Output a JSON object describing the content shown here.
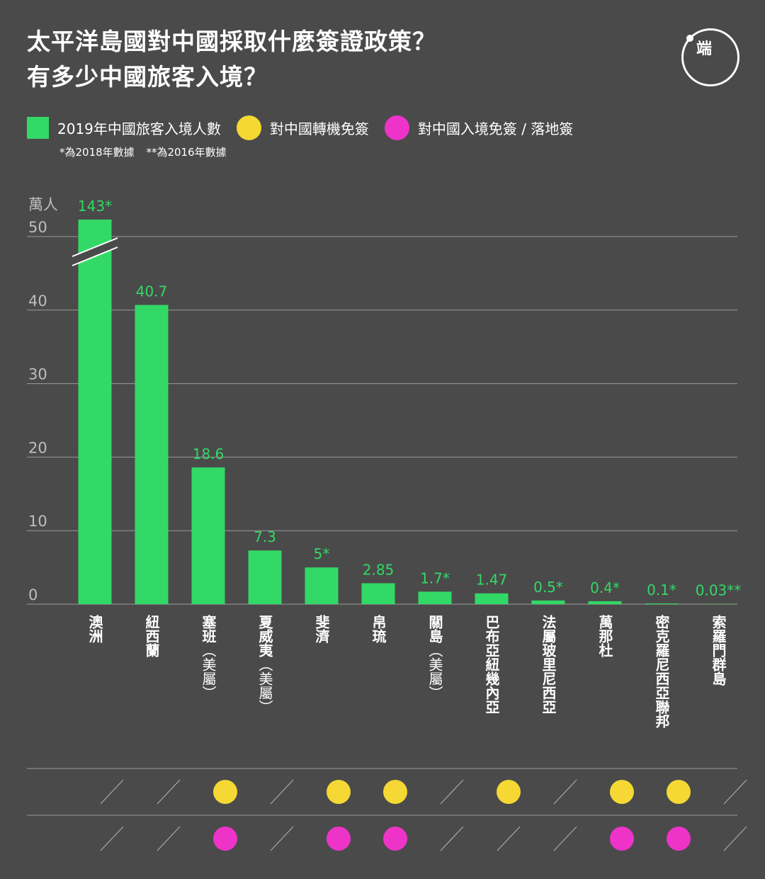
{
  "title": {
    "line1": "太平洋島國對中國採取什麼簽證政策？",
    "line2": "有多少中國旅客入境？"
  },
  "logo_text": "端",
  "legend": {
    "bar": "2019年中國旅客入境人數",
    "transit": "對中國轉機免簽",
    "entry": "對中國入境免簽 / 落地簽"
  },
  "notes": {
    "n1": "*為2018年數據",
    "n2": "**為2016年數據"
  },
  "colors": {
    "background": "#4a4a4a",
    "bar": "#33d966",
    "label": "#33d966",
    "transit": "#f5d833",
    "entry": "#ee33c9",
    "grid": "#9a9a9a",
    "axis_text": "#bdbdbd"
  },
  "chart_data": {
    "type": "bar",
    "unit": "萬人",
    "ylim": [
      0,
      50
    ],
    "yticks": [
      0,
      10,
      20,
      30,
      40,
      50
    ],
    "axis_break": true,
    "grid": true,
    "categories": [
      "澳洲",
      "紐西蘭",
      "塞班（美屬）",
      "夏威夷（美屬）",
      "斐濟",
      "帛琉",
      "關島（美屬）",
      "巴布亞紐幾內亞",
      "法屬玻里尼西亞",
      "萬那杜",
      "密克羅尼西亞聯邦",
      "索羅門群島"
    ],
    "category_labels": [
      {
        "main": "澳洲",
        "sub": ""
      },
      {
        "main": "紐西蘭",
        "sub": ""
      },
      {
        "main": "塞班",
        "sub": "美屬"
      },
      {
        "main": "夏威夷",
        "sub": "美屬"
      },
      {
        "main": "斐濟",
        "sub": ""
      },
      {
        "main": "帛琉",
        "sub": ""
      },
      {
        "main": "關島",
        "sub": "美屬"
      },
      {
        "main": "巴布亞紐幾內亞",
        "sub": ""
      },
      {
        "main": "法屬玻里尼西亞",
        "sub": ""
      },
      {
        "main": "萬那杜",
        "sub": ""
      },
      {
        "main": "密克羅尼西亞聯邦",
        "sub": ""
      },
      {
        "main": "索羅門群島",
        "sub": ""
      }
    ],
    "values": [
      143,
      40.7,
      18.6,
      7.3,
      5,
      2.85,
      1.7,
      1.47,
      0.5,
      0.4,
      0.1,
      0.03
    ],
    "value_labels": [
      "143*",
      "40.7",
      "18.6",
      "7.3",
      "5*",
      "2.85",
      "1.7*",
      "1.47",
      "0.5*",
      "0.4*",
      "0.1*",
      "0.03**"
    ],
    "transit_visa_free": [
      false,
      false,
      true,
      false,
      true,
      true,
      false,
      true,
      false,
      true,
      true,
      false
    ],
    "entry_visa_free": [
      false,
      false,
      true,
      false,
      true,
      true,
      false,
      false,
      false,
      true,
      true,
      false
    ]
  }
}
